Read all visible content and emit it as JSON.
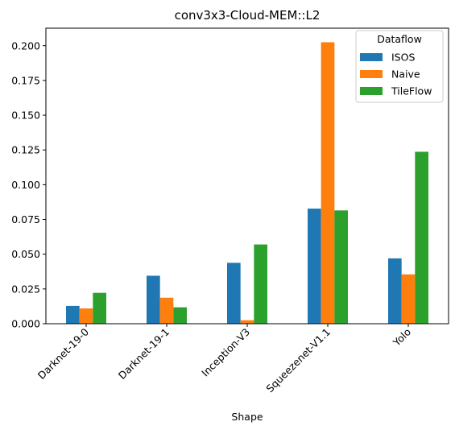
{
  "chart_data": {
    "type": "bar",
    "title": "conv3x3-Cloud-MEM::L2",
    "xlabel": "Shape",
    "ylabel": "",
    "categories": [
      "Darknet-19-0",
      "Darknet-19-1",
      "Inception-V3",
      "Squeezenet-V1.1",
      "Yolo"
    ],
    "series": [
      {
        "name": "ISOS",
        "color": "#1f77b4",
        "values": [
          0.0128,
          0.0345,
          0.0438,
          0.0828,
          0.047
        ]
      },
      {
        "name": "Naive",
        "color": "#ff7f0e",
        "values": [
          0.011,
          0.0187,
          0.0025,
          0.2025,
          0.0355
        ]
      },
      {
        "name": "TileFlow",
        "color": "#2ca02c",
        "values": [
          0.0222,
          0.0118,
          0.057,
          0.0815,
          0.1237
        ]
      }
    ],
    "ylim": [
      0,
      0.2126
    ],
    "yticks": [
      0.0,
      0.025,
      0.05,
      0.075,
      0.1,
      0.125,
      0.15,
      0.175,
      0.2
    ],
    "ytick_labels": [
      "0.000",
      "0.025",
      "0.050",
      "0.075",
      "0.100",
      "0.125",
      "0.150",
      "0.175",
      "0.200"
    ],
    "legend": {
      "title": "Dataflow",
      "position": "top-right"
    },
    "grid": false
  }
}
